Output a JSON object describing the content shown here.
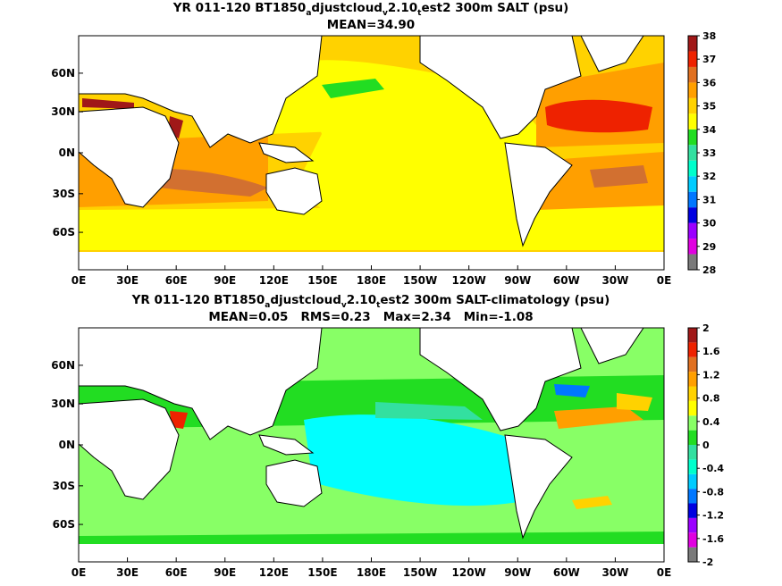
{
  "chart_data": [
    {
      "type": "heatmap",
      "title": "YR 011-120 BT1850_adjustcloud_v2.10_test2 300m SALT (psu)",
      "title_parts": {
        "a": "YR 011-120 BT1850",
        "sub1": "a",
        "b": "djustcloud",
        "sub2": "v",
        "c": "2.10",
        "sub3": "t",
        "d": "est2 300m SALT (psu)"
      },
      "subtitle": "MEAN=34.90",
      "xticks": [
        "0E",
        "30E",
        "60E",
        "90E",
        "120E",
        "150E",
        "180E",
        "150W",
        "120W",
        "90W",
        "60W",
        "30W",
        "0E"
      ],
      "yticks": [
        "60N",
        "30N",
        "0N",
        "30S",
        "60S"
      ],
      "colorbar": {
        "labels": [
          "38",
          "37",
          "36",
          "35",
          "34",
          "33",
          "32",
          "31",
          "30",
          "29",
          "28"
        ],
        "colors": [
          "#7a7a7a",
          "#e000e0",
          "#9b00ff",
          "#0000e0",
          "#0077ff",
          "#00ccff",
          "#00ffcc",
          "#33e0a0",
          "#22dd22",
          "#ffff00",
          "#ffd200",
          "#ff9f00",
          "#e07020",
          "#ee2200",
          "#a01818"
        ]
      },
      "regions": [
        {
          "name": "pacific-yellow",
          "value": 34.7,
          "color": "#ffff00"
        },
        {
          "name": "north-atlantic-high",
          "value": 36.8,
          "color": "#ee2200"
        },
        {
          "name": "indian-ocean",
          "value": 35.2,
          "color": "#ffd200"
        },
        {
          "name": "south-subtropical-band",
          "value": 35.8,
          "color": "#d27030"
        },
        {
          "name": "red-sea",
          "value": 37.5,
          "color": "#a01818"
        }
      ]
    },
    {
      "type": "heatmap",
      "title": "YR 011-120 BT1850_adjustcloud_v2.10_test2 300m SALT-climatology (psu)",
      "title_parts": {
        "a": "YR 011-120 BT1850",
        "sub1": "a",
        "b": "djustcloud",
        "sub2": "v",
        "c": "2.10",
        "sub3": "t",
        "d": "est2 300m SALT-climatology (psu)"
      },
      "subtitle": "MEAN=0.05   RMS=0.23   Max=2.34   Min=-1.08",
      "xticks": [
        "0E",
        "30E",
        "60E",
        "90E",
        "120E",
        "150E",
        "180E",
        "150W",
        "120W",
        "90W",
        "60W",
        "30W",
        "0E"
      ],
      "yticks": [
        "60N",
        "30N",
        "0N",
        "30S",
        "60S"
      ],
      "colorbar": {
        "labels": [
          "2",
          "1.6",
          "1.2",
          "0.8",
          "0.4",
          "0",
          "-0.4",
          "-0.8",
          "-1.2",
          "-1.6",
          "-2"
        ],
        "colors": [
          "#7a7a7a",
          "#e000e0",
          "#9b00ff",
          "#0000e0",
          "#0077ff",
          "#00ccff",
          "#00ffcc",
          "#33e0a0",
          "#22dd22",
          "#88ff66",
          "#ffff00",
          "#ffd200",
          "#ff9f00",
          "#e07020",
          "#ee2200",
          "#a01818"
        ]
      },
      "regions": [
        {
          "name": "global-near-zero",
          "value": 0.1,
          "color": "#88ff66"
        },
        {
          "name": "tropical-pacific-fresh",
          "value": -0.5,
          "color": "#00ffff"
        },
        {
          "name": "arabian-sea-salty",
          "value": 1.4,
          "color": "#ee2200"
        },
        {
          "name": "gulf-stream",
          "value": 1.0,
          "color": "#ff9f00"
        }
      ]
    }
  ]
}
